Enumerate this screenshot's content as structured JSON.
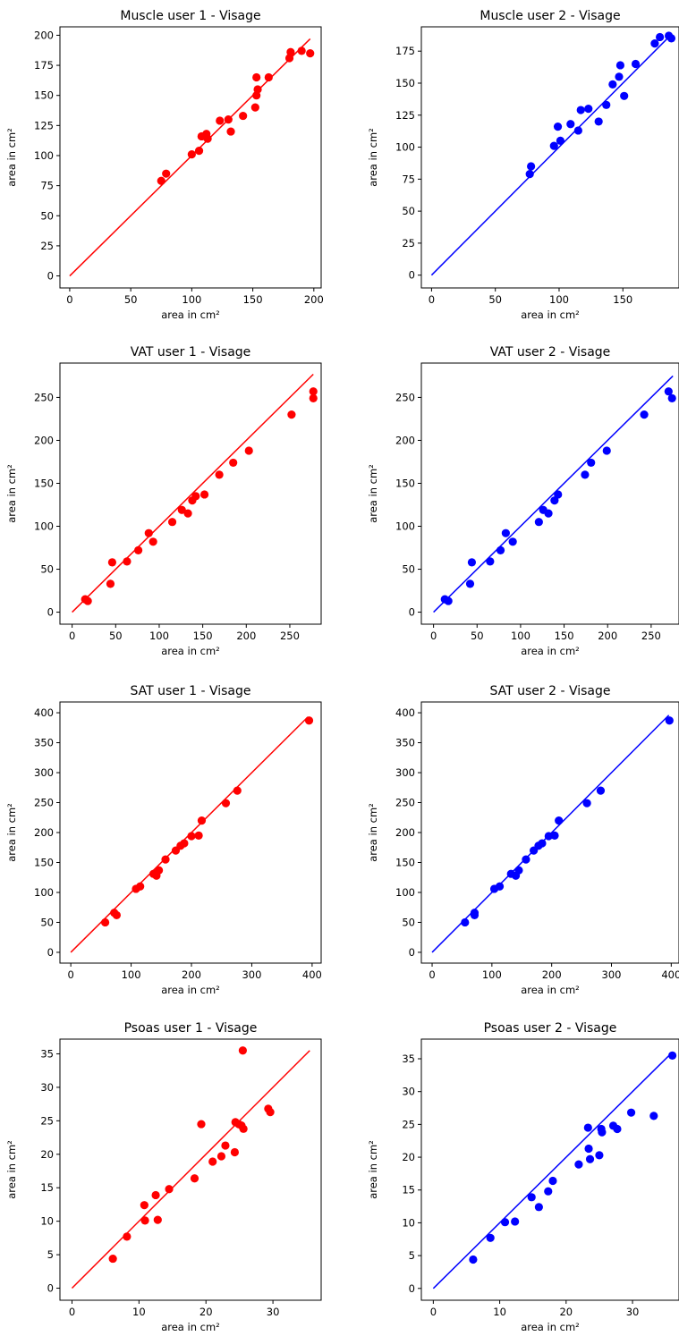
{
  "colors": {
    "user1": "#ff0000",
    "user2": "#0000ff",
    "axes": "#000000"
  },
  "chart_data": [
    {
      "type": "scatter",
      "title": "Muscle user 1 - Visage",
      "xlabel": "area in cm²",
      "ylabel": "area in cm²",
      "xticks": [
        0,
        50,
        100,
        150,
        200
      ],
      "yticks": [
        0,
        25,
        50,
        75,
        100,
        125,
        150,
        175,
        200
      ],
      "xlim": [
        -8,
        206
      ],
      "ylim": [
        -10,
        207
      ],
      "color": "#ff0000",
      "identity_line": [
        0,
        197
      ],
      "x": [
        75,
        79,
        100,
        106,
        108,
        112,
        113,
        111,
        123,
        130,
        132,
        142,
        152,
        153,
        153,
        154,
        163,
        180,
        181,
        190,
        197
      ],
      "y": [
        79,
        85,
        101,
        104,
        116,
        118,
        114,
        116,
        129,
        130,
        120,
        133,
        140,
        165,
        150,
        155,
        165,
        181,
        186,
        187,
        185
      ]
    },
    {
      "type": "scatter",
      "title": "Muscle user 2 - Visage",
      "xlabel": "area in cm²",
      "ylabel": "area in cm²",
      "xticks": [
        0,
        50,
        100,
        150
      ],
      "yticks": [
        0,
        25,
        50,
        75,
        100,
        125,
        150,
        175
      ],
      "xlim": [
        -8,
        194
      ],
      "ylim": [
        -10,
        194
      ],
      "color": "#0000ff",
      "identity_line": [
        0,
        186
      ],
      "x": [
        77,
        78,
        96,
        99,
        101,
        109,
        115,
        117,
        123,
        131,
        137,
        142,
        147,
        148,
        151,
        160,
        175,
        179,
        186,
        188
      ],
      "y": [
        79,
        85,
        101,
        116,
        105,
        118,
        113,
        129,
        130,
        120,
        133,
        149,
        155,
        164,
        140,
        165,
        181,
        186,
        187,
        185
      ]
    },
    {
      "type": "scatter",
      "title": "VAT user 1 - Visage",
      "xlabel": "area in cm²",
      "ylabel": "area in cm²",
      "xticks": [
        0,
        50,
        100,
        150,
        200,
        250
      ],
      "yticks": [
        0,
        50,
        100,
        150,
        200,
        250
      ],
      "xlim": [
        -14,
        286
      ],
      "ylim": [
        -14,
        290
      ],
      "color": "#ff0000",
      "identity_line": [
        0,
        277
      ],
      "x": [
        15,
        18,
        44,
        46,
        63,
        76,
        88,
        93,
        115,
        126,
        133,
        138,
        142,
        152,
        169,
        185,
        203,
        252,
        277,
        277
      ],
      "y": [
        15,
        13,
        33,
        58,
        59,
        72,
        92,
        82,
        105,
        119,
        115,
        130,
        135,
        137,
        160,
        174,
        188,
        230,
        257,
        249
      ]
    },
    {
      "type": "scatter",
      "title": "VAT user 2 - Visage",
      "xlabel": "area in cm²",
      "ylabel": "area in cm²",
      "xticks": [
        0,
        50,
        100,
        150,
        200,
        250
      ],
      "yticks": [
        0,
        50,
        100,
        150,
        200,
        250
      ],
      "xlim": [
        -14,
        282
      ],
      "ylim": [
        -14,
        290
      ],
      "color": "#0000ff",
      "identity_line": [
        0,
        275
      ],
      "x": [
        13,
        17,
        42,
        44,
        65,
        77,
        83,
        91,
        121,
        126,
        132,
        139,
        143,
        174,
        181,
        199,
        242,
        270,
        274
      ],
      "y": [
        15,
        13,
        33,
        58,
        59,
        72,
        92,
        82,
        105,
        119,
        115,
        130,
        137,
        160,
        174,
        188,
        230,
        257,
        249
      ]
    },
    {
      "type": "scatter",
      "title": "SAT user 1 - Visage",
      "xlabel": "area in cm²",
      "ylabel": "area in cm²",
      "xticks": [
        0,
        100,
        200,
        300,
        400
      ],
      "yticks": [
        0,
        50,
        100,
        150,
        200,
        250,
        300,
        350,
        400
      ],
      "xlim": [
        -18,
        415
      ],
      "ylim": [
        -18,
        418
      ],
      "color": "#ff0000",
      "identity_line": [
        0,
        393
      ],
      "x": [
        57,
        72,
        76,
        108,
        115,
        137,
        142,
        146,
        157,
        174,
        182,
        188,
        200,
        212,
        217,
        257,
        276,
        395
      ],
      "y": [
        50,
        66,
        62,
        106,
        110,
        131,
        128,
        137,
        155,
        170,
        178,
        182,
        194,
        195,
        220,
        249,
        270,
        387
      ],
      "title_note": ""
    },
    {
      "type": "scatter",
      "title": "SAT user 2 - Visage",
      "xlabel": "area in cm²",
      "ylabel": "area in cm²",
      "xticks": [
        0,
        100,
        200,
        300,
        400
      ],
      "yticks": [
        0,
        50,
        100,
        150,
        200,
        250,
        300,
        350,
        400
      ],
      "xlim": [
        -18,
        413
      ],
      "ylim": [
        -18,
        418
      ],
      "color": "#0000ff",
      "identity_line": [
        0,
        396
      ],
      "x": [
        55,
        71,
        71,
        104,
        113,
        132,
        140,
        145,
        157,
        170,
        178,
        184,
        195,
        205,
        212,
        259,
        282,
        397
      ],
      "y": [
        50,
        66,
        62,
        106,
        110,
        131,
        128,
        137,
        155,
        170,
        178,
        182,
        194,
        195,
        220,
        249,
        270,
        387
      ]
    },
    {
      "type": "scatter",
      "title": "Psoas user 1 - Visage",
      "xlabel": "area in cm²",
      "ylabel": "area in cm²",
      "xticks": [
        0,
        10,
        20,
        30
      ],
      "yticks": [
        0,
        5,
        10,
        15,
        20,
        25,
        30,
        35
      ],
      "xlim": [
        -1.8,
        37.2
      ],
      "ylim": [
        -1.8,
        37.2
      ],
      "color": "#ff0000",
      "identity_line": [
        0,
        35.5
      ],
      "x": [
        6.1,
        8.2,
        10.8,
        10.9,
        12.5,
        12.8,
        14.5,
        18.3,
        19.3,
        21.0,
        22.3,
        22.9,
        24.3,
        24.4,
        24.9,
        25.3,
        25.5,
        25.6,
        29.3,
        29.6
      ],
      "y": [
        4.4,
        7.7,
        12.4,
        10.1,
        13.9,
        10.2,
        14.8,
        16.4,
        24.5,
        18.9,
        19.7,
        21.3,
        20.3,
        24.8,
        24.5,
        24.3,
        35.5,
        23.8,
        26.8,
        26.3
      ]
    },
    {
      "type": "scatter",
      "title": "Psoas user 2 - Visage",
      "xlabel": "area in cm²",
      "ylabel": "area in cm²",
      "xticks": [
        0,
        10,
        20,
        30
      ],
      "yticks": [
        0,
        5,
        10,
        15,
        20,
        25,
        30,
        35
      ],
      "xlim": [
        -1.8,
        37.0
      ],
      "ylim": [
        -1.8,
        38.0
      ],
      "color": "#0000ff",
      "identity_line": [
        0,
        36.0
      ],
      "x": [
        6.0,
        8.6,
        10.8,
        12.3,
        14.8,
        15.9,
        17.3,
        18.0,
        21.9,
        23.3,
        23.4,
        23.6,
        25.0,
        25.3,
        25.4,
        27.1,
        27.7,
        29.8,
        33.2,
        36.0
      ],
      "y": [
        4.4,
        7.7,
        10.1,
        10.2,
        13.9,
        12.4,
        14.8,
        16.4,
        18.9,
        24.5,
        21.3,
        19.7,
        20.3,
        24.3,
        23.8,
        24.8,
        24.3,
        26.8,
        26.3,
        35.5
      ]
    }
  ]
}
